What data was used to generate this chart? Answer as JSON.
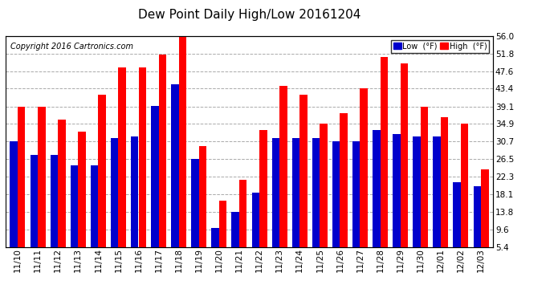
{
  "title": "Dew Point Daily High/Low 20161204",
  "copyright": "Copyright 2016 Cartronics.com",
  "legend_low": "Low  (°F)",
  "legend_high": "High  (°F)",
  "dates": [
    "11/10",
    "11/11",
    "11/12",
    "11/13",
    "11/14",
    "11/15",
    "11/16",
    "11/17",
    "11/18",
    "11/19",
    "11/20",
    "11/21",
    "11/22",
    "11/23",
    "11/24",
    "11/25",
    "11/26",
    "11/27",
    "11/28",
    "11/29",
    "11/30",
    "12/01",
    "12/02",
    "12/03"
  ],
  "high": [
    39.0,
    39.0,
    36.0,
    33.0,
    42.0,
    48.5,
    48.5,
    51.5,
    56.0,
    29.5,
    16.5,
    21.5,
    33.5,
    44.0,
    42.0,
    35.0,
    37.5,
    43.5,
    51.0,
    49.5,
    39.0,
    36.5,
    34.9,
    24.0
  ],
  "low": [
    30.7,
    27.5,
    27.5,
    25.0,
    25.0,
    31.5,
    32.0,
    39.2,
    44.5,
    26.5,
    10.0,
    13.8,
    18.5,
    31.5,
    31.5,
    31.5,
    30.7,
    30.7,
    33.5,
    32.5,
    32.0,
    32.0,
    21.0,
    20.0
  ],
  "ylim_min": 5.4,
  "ylim_max": 56.0,
  "yticks": [
    5.4,
    9.6,
    13.8,
    18.1,
    22.3,
    26.5,
    30.7,
    34.9,
    39.1,
    43.4,
    47.6,
    51.8,
    56.0
  ],
  "bar_width": 0.38,
  "high_color": "#FF0000",
  "low_color": "#0000CC",
  "bg_color": "#FFFFFF",
  "grid_color": "#AAAAAA",
  "title_fontsize": 11,
  "tick_fontsize": 7.5,
  "copyright_fontsize": 7
}
